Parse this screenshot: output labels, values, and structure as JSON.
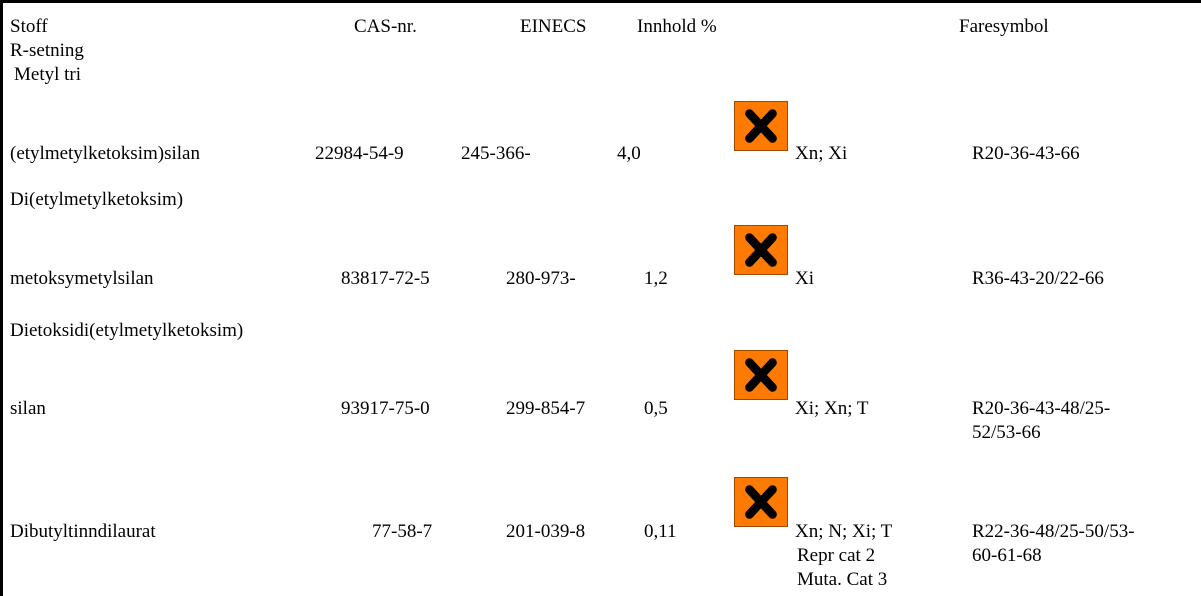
{
  "header": {
    "stoff": "Stoff",
    "cas": "CAS-nr.",
    "einecs": "EINECS",
    "innhold": "Innhold %",
    "faresymbol": "Faresymbol",
    "rsetning": "R-setning"
  },
  "rows": [
    {
      "name_lines": [
        "Metyl tri",
        "(etylmetylketoksim)silan"
      ],
      "cas": "22984-54-9",
      "einecs": "245-366-",
      "innhold": "4,0",
      "symbol": "harmful-x-icon",
      "class_lines": [
        "Xn; Xi"
      ],
      "r_lines": [
        "R20-36-43-66"
      ]
    },
    {
      "name_lines": [
        "Di(etylmetylketoksim)",
        "metoksymetylsilan"
      ],
      "cas": "83817-72-5",
      "einecs": "280-973-",
      "innhold": "1,2",
      "symbol": "harmful-x-icon",
      "class_lines": [
        "Xi"
      ],
      "r_lines": [
        "R36-43-20/22-66"
      ]
    },
    {
      "name_lines": [
        "Dietoksidi(etylmetylketoksim)",
        "silan"
      ],
      "cas": "93917-75-0",
      "einecs": "299-854-7",
      "innhold": "0,5",
      "symbol": "harmful-x-icon",
      "class_lines": [
        "Xi; Xn; T"
      ],
      "r_lines": [
        "R20-36-43-48/25-",
        "52/53-66"
      ]
    },
    {
      "name_lines": [
        "Dibutyltinndilaurat"
      ],
      "cas": "77-58-7",
      "einecs": "201-039-8",
      "innhold": "0,11",
      "symbol": "harmful-x-icon",
      "class_lines": [
        "Xn; N; Xi; T",
        "Repr cat 2",
        "Muta. Cat 3"
      ],
      "r_lines": [
        "R22-36-48/25-50/53-",
        "60-61-68"
      ]
    }
  ],
  "colors": {
    "hazard_orange": "#ff7a00",
    "hazard_cross": "#000000"
  }
}
